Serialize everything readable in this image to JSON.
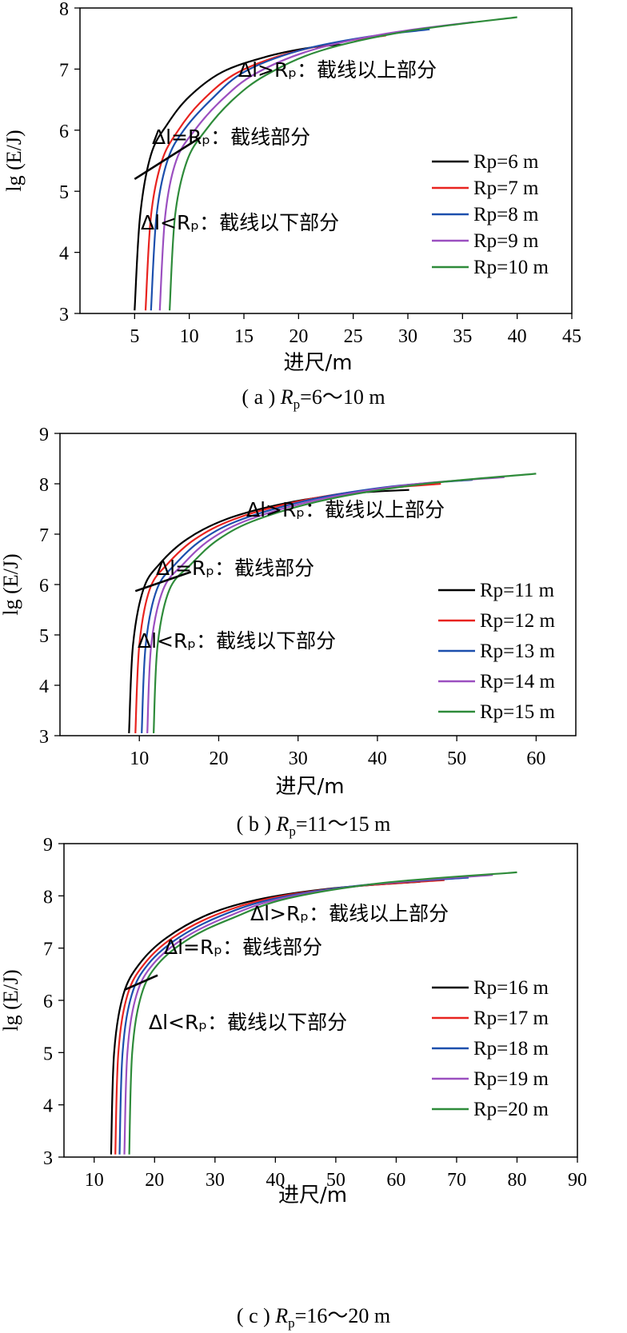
{
  "chart_data": [
    {
      "type": "line",
      "panel_label": "( a )",
      "caption_range": "=6～10 m",
      "xlabel": "进尺/m",
      "ylabel": "lg (E/J)",
      "xlim": [
        0,
        45
      ],
      "ylim": [
        3,
        8
      ],
      "xticks": [
        5,
        10,
        15,
        20,
        25,
        30,
        35,
        40,
        45
      ],
      "yticks": [
        3,
        4,
        5,
        6,
        7,
        8
      ],
      "annotations": [
        "Δl>Rₚ：截线以上部分",
        "Δl=Rₚ：截线部分",
        "Δl<Rₚ：截线以下部分"
      ],
      "series": [
        {
          "name": "Rp=6 m",
          "color": "#000000",
          "x": [
            5.0,
            5.5,
            6.5,
            8,
            10,
            13,
            17,
            21,
            24
          ],
          "y": [
            3.05,
            4.6,
            5.6,
            6.1,
            6.55,
            6.95,
            7.2,
            7.35,
            7.4
          ]
        },
        {
          "name": "Rp=7 m",
          "color": "#e8231f",
          "x": [
            6.0,
            6.5,
            7.5,
            9,
            11,
            14,
            18,
            23,
            28
          ],
          "y": [
            3.05,
            4.6,
            5.5,
            6.0,
            6.45,
            6.9,
            7.2,
            7.42,
            7.55
          ]
        },
        {
          "name": "Rp=8 m",
          "color": "#1c4fad",
          "x": [
            6.5,
            7.0,
            8.0,
            9.5,
            12,
            15,
            20,
            26,
            32
          ],
          "y": [
            3.05,
            4.6,
            5.5,
            6.0,
            6.5,
            6.95,
            7.3,
            7.52,
            7.65
          ]
        },
        {
          "name": "Rp=9 m",
          "color": "#9b4fc0",
          "x": [
            7.3,
            7.8,
            8.8,
            10.5,
            13,
            16,
            21,
            28,
            36
          ],
          "y": [
            3.05,
            4.6,
            5.5,
            6.0,
            6.5,
            6.92,
            7.3,
            7.58,
            7.77
          ]
        },
        {
          "name": "Rp=10 m",
          "color": "#2e8b3a",
          "x": [
            8.2,
            8.7,
            9.8,
            11.5,
            14,
            17,
            22,
            30,
            40
          ],
          "y": [
            3.05,
            4.6,
            5.5,
            6.0,
            6.5,
            6.9,
            7.3,
            7.62,
            7.85
          ]
        }
      ],
      "cutoff_line": {
        "x": [
          5.0,
          11.0
        ],
        "y": [
          5.2,
          5.88
        ]
      }
    },
    {
      "type": "line",
      "panel_label": "( b )",
      "caption_range": "=11～15 m",
      "xlabel": "进尺/m",
      "ylabel": "lg (E/J)",
      "xlim": [
        0,
        65
      ],
      "ylim": [
        3,
        9
      ],
      "xticks": [
        10,
        20,
        30,
        40,
        50,
        60
      ],
      "yticks": [
        3,
        4,
        5,
        6,
        7,
        8,
        9
      ],
      "annotations": [
        "Δl>Rₚ：截线以上部分",
        "Δl=Rₚ：截线部分",
        "Δl<Rₚ：截线以下部分"
      ],
      "series": [
        {
          "name": "Rp=11 m",
          "color": "#000000",
          "x": [
            8.7,
            9.2,
            10.5,
            12.5,
            16,
            21,
            28,
            36,
            44
          ],
          "y": [
            3.05,
            4.8,
            5.9,
            6.4,
            6.9,
            7.3,
            7.6,
            7.8,
            7.88
          ]
        },
        {
          "name": "Rp=12 m",
          "color": "#e8231f",
          "x": [
            9.5,
            10.0,
            11.3,
            13.5,
            17,
            22,
            30,
            39,
            48
          ],
          "y": [
            3.05,
            4.8,
            5.9,
            6.4,
            6.9,
            7.3,
            7.65,
            7.88,
            8.0
          ]
        },
        {
          "name": "Rp=13 m",
          "color": "#1c4fad",
          "x": [
            10.3,
            10.8,
            12.2,
            14.5,
            18,
            23,
            32,
            42,
            52
          ],
          "y": [
            3.05,
            4.8,
            5.9,
            6.4,
            6.9,
            7.3,
            7.7,
            7.95,
            8.08
          ]
        },
        {
          "name": "Rp=14 m",
          "color": "#9b4fc0",
          "x": [
            11.0,
            11.5,
            13.0,
            15.5,
            19,
            24,
            33,
            44,
            56
          ],
          "y": [
            3.05,
            4.8,
            5.9,
            6.4,
            6.9,
            7.3,
            7.7,
            7.98,
            8.13
          ]
        },
        {
          "name": "Rp=15 m",
          "color": "#2e8b3a",
          "x": [
            11.8,
            12.3,
            13.8,
            16.5,
            20,
            25,
            34,
            46,
            60
          ],
          "y": [
            3.05,
            4.8,
            5.9,
            6.4,
            6.9,
            7.3,
            7.7,
            8.0,
            8.2
          ]
        }
      ],
      "cutoff_line": {
        "x": [
          9.5,
          16.5
        ],
        "y": [
          5.87,
          6.25
        ]
      }
    },
    {
      "type": "line",
      "panel_label": "( c )",
      "caption_range": "=16～20 m",
      "xlabel": "进尺/m",
      "ylabel": "lg (E/J)",
      "xlim": [
        5,
        90
      ],
      "ylim": [
        3,
        9
      ],
      "xticks": [
        10,
        20,
        30,
        40,
        50,
        60,
        70,
        80,
        90
      ],
      "yticks": [
        3,
        4,
        5,
        6,
        7,
        8,
        9
      ],
      "annotations": [
        "Δl>Rₚ：截线以上部分",
        "Δl=Rₚ：截线部分",
        "Δl<Rₚ：截线以下部分"
      ],
      "series": [
        {
          "name": "Rp=16 m",
          "color": "#000000",
          "x": [
            12.8,
            13.3,
            14.8,
            17.5,
            22,
            29,
            38,
            50,
            64
          ],
          "y": [
            3.05,
            5.0,
            6.1,
            6.7,
            7.2,
            7.65,
            7.95,
            8.15,
            8.27
          ]
        },
        {
          "name": "Rp=17 m",
          "color": "#e8231f",
          "x": [
            13.5,
            14.0,
            15.5,
            18.3,
            23,
            30,
            39,
            52,
            68
          ],
          "y": [
            3.05,
            5.0,
            6.1,
            6.7,
            7.2,
            7.63,
            7.95,
            8.17,
            8.3
          ]
        },
        {
          "name": "Rp=18 m",
          "color": "#1c4fad",
          "x": [
            14.2,
            14.7,
            16.2,
            19.0,
            24,
            31,
            40,
            54,
            72
          ],
          "y": [
            3.05,
            5.0,
            6.1,
            6.7,
            7.2,
            7.62,
            7.95,
            8.2,
            8.35
          ]
        },
        {
          "name": "Rp=19 m",
          "color": "#9b4fc0",
          "x": [
            15.0,
            15.5,
            17.0,
            19.8,
            25,
            32,
            41,
            56,
            76
          ],
          "y": [
            3.05,
            5.0,
            6.1,
            6.7,
            7.2,
            7.6,
            7.95,
            8.22,
            8.4
          ]
        },
        {
          "name": "Rp=20 m",
          "color": "#2e8b3a",
          "x": [
            15.8,
            16.3,
            17.8,
            20.6,
            26,
            33,
            42,
            58,
            80
          ],
          "y": [
            3.05,
            5.0,
            6.1,
            6.7,
            7.2,
            7.58,
            7.95,
            8.25,
            8.45
          ]
        }
      ],
      "cutoff_line": {
        "x": [
          15.0,
          20.5
        ],
        "y": [
          6.2,
          6.48
        ]
      }
    }
  ]
}
